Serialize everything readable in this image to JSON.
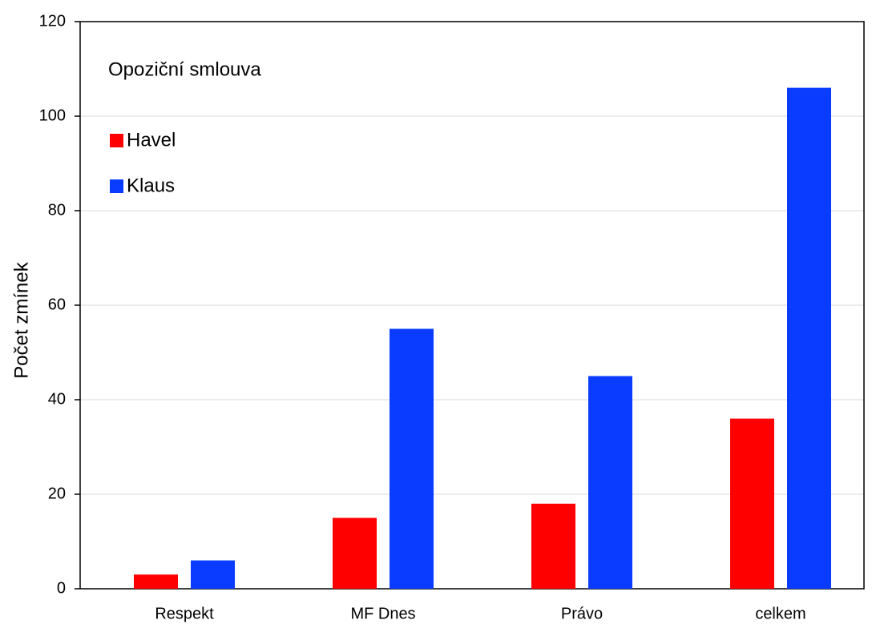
{
  "chart_data": {
    "type": "bar",
    "annotation": "Opoziční smlouva",
    "y_label": "Počet zmínek",
    "categories": [
      "Respekt",
      "MF Dnes",
      "Právo",
      "celkem"
    ],
    "series": [
      {
        "name": "Havel",
        "color": "#ff0000",
        "values": [
          3,
          15,
          18,
          36
        ]
      },
      {
        "name": "Klaus",
        "color": "#0a3cff",
        "values": [
          6,
          55,
          45,
          106
        ]
      }
    ],
    "ylim": [
      0,
      120
    ],
    "yticks": [
      0,
      20,
      40,
      60,
      80,
      100,
      120
    ],
    "grid": true,
    "legend": "upper-left"
  }
}
